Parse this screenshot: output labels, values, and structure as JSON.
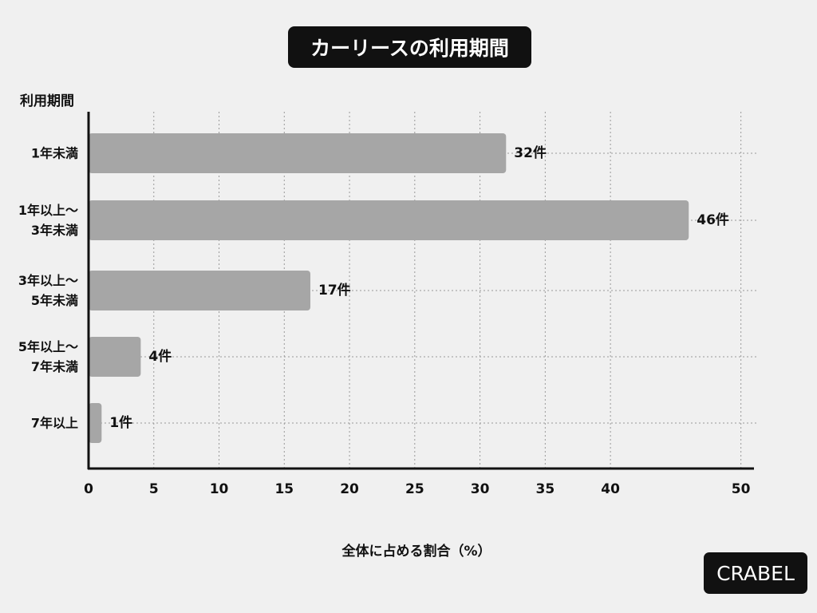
{
  "chart_data": {
    "type": "bar",
    "orientation": "horizontal",
    "title": "カーリースの利用期間",
    "y_label": "利用期間",
    "x_label": "全体に占める割合（%）",
    "categories": [
      "1年未満",
      "1年以上〜\n3年未満",
      "3年以上〜\n5年未満",
      "5年以上〜\n7年未満",
      "7年以上"
    ],
    "values": [
      32,
      46,
      17,
      4,
      1
    ],
    "value_labels": [
      "32件",
      "46件",
      "17件",
      "4件",
      "1件"
    ],
    "color": "#a6a6a6",
    "xlim": [
      0,
      51
    ],
    "xticks": [
      0,
      5,
      10,
      15,
      20,
      25,
      30,
      35,
      40,
      50
    ],
    "grid": true
  },
  "logo": "CRABEL"
}
